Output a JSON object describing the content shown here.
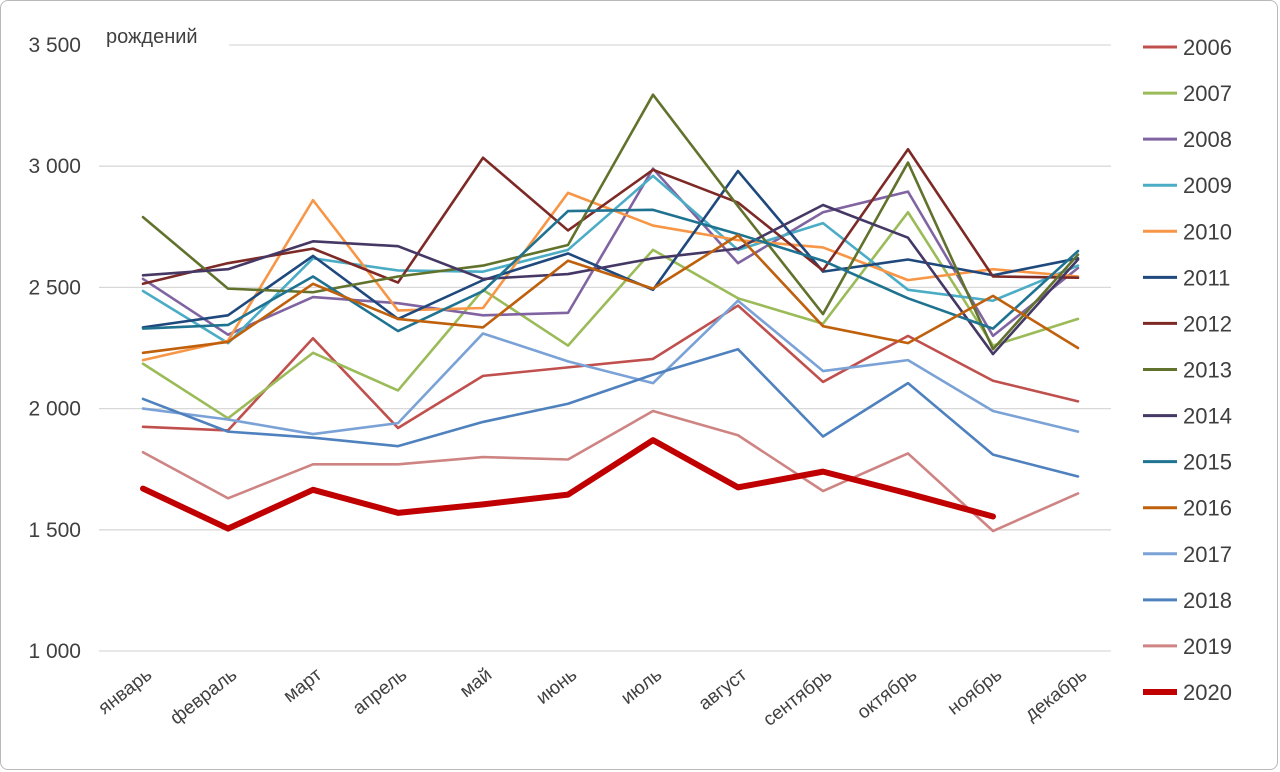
{
  "chart_data": {
    "type": "line",
    "title": "рождений",
    "x_categories": [
      "январь",
      "февраль",
      "март",
      "апрель",
      "май",
      "июнь",
      "июль",
      "август",
      "сентябрь",
      "октябрь",
      "ноябрь",
      "декабрь"
    ],
    "y_ticks": [
      {
        "label": "3 500",
        "value": 3500
      },
      {
        "label": "3 000",
        "value": 3000
      },
      {
        "label": "2 500",
        "value": 2500
      },
      {
        "label": "2 000",
        "value": 2000
      },
      {
        "label": "1 500",
        "value": 1500
      },
      {
        "label": "1 000",
        "value": 1000
      }
    ],
    "ylim": [
      1000,
      3500
    ],
    "grid": true,
    "grid_color": "#d9d9d9",
    "text_color": "#404040",
    "legend_position": "right",
    "series": [
      {
        "name": "2006",
        "color": "#C0504D",
        "width": 2.6,
        "values": [
          1925,
          1910,
          2290,
          1920,
          2135,
          2170,
          2205,
          2425,
          2110,
          2300,
          2115,
          2030
        ]
      },
      {
        "name": "2007",
        "color": "#9BBB59",
        "width": 2.6,
        "values": [
          2185,
          1960,
          2230,
          2075,
          2490,
          2260,
          2655,
          2455,
          2350,
          2810,
          2260,
          2370
        ]
      },
      {
        "name": "2008",
        "color": "#8064A2",
        "width": 2.6,
        "values": [
          2535,
          2305,
          2460,
          2435,
          2385,
          2395,
          2990,
          2600,
          2810,
          2895,
          2300,
          2580
        ]
      },
      {
        "name": "2009",
        "color": "#4BACC6",
        "width": 2.6,
        "values": [
          2485,
          2270,
          2620,
          2570,
          2565,
          2655,
          2960,
          2655,
          2765,
          2490,
          2445,
          2590
        ]
      },
      {
        "name": "2010",
        "color": "#F79646",
        "width": 2.6,
        "values": [
          2200,
          2280,
          2860,
          2405,
          2415,
          2890,
          2755,
          2695,
          2665,
          2530,
          2575,
          2545
        ]
      },
      {
        "name": "2011",
        "color": "#1F497D",
        "width": 2.6,
        "values": [
          2335,
          2385,
          2630,
          2370,
          2530,
          2640,
          2490,
          2980,
          2565,
          2615,
          2550,
          2620
        ]
      },
      {
        "name": "2012",
        "color": "#7D2A26",
        "width": 2.6,
        "values": [
          2515,
          2600,
          2660,
          2520,
          3035,
          2735,
          2985,
          2850,
          2570,
          3070,
          2545,
          2540
        ]
      },
      {
        "name": "2013",
        "color": "#61722D",
        "width": 2.6,
        "values": [
          2790,
          2495,
          2480,
          2545,
          2590,
          2675,
          3295,
          2835,
          2390,
          3015,
          2245,
          2635
        ]
      },
      {
        "name": "2014",
        "color": "#453864",
        "width": 2.6,
        "values": [
          2550,
          2575,
          2690,
          2670,
          2535,
          2555,
          2620,
          2660,
          2840,
          2705,
          2225,
          2615
        ]
      },
      {
        "name": "2015",
        "color": "#1F7391",
        "width": 2.6,
        "values": [
          2330,
          2345,
          2545,
          2320,
          2485,
          2815,
          2820,
          2720,
          2610,
          2455,
          2330,
          2650
        ]
      },
      {
        "name": "2016",
        "color": "#BF600D",
        "width": 2.6,
        "values": [
          2230,
          2275,
          2515,
          2370,
          2335,
          2610,
          2495,
          2715,
          2340,
          2270,
          2465,
          2250
        ]
      },
      {
        "name": "2017",
        "color": "#7BA2D6",
        "width": 2.6,
        "values": [
          2000,
          1955,
          1895,
          1940,
          2310,
          2195,
          2105,
          2445,
          2155,
          2200,
          1990,
          1905
        ]
      },
      {
        "name": "2018",
        "color": "#4E81BD",
        "width": 2.6,
        "values": [
          2040,
          1905,
          1880,
          1845,
          1945,
          2020,
          2140,
          2245,
          1885,
          2105,
          1810,
          1720
        ]
      },
      {
        "name": "2019",
        "color": "#CE8483",
        "width": 2.6,
        "values": [
          1820,
          1630,
          1770,
          1770,
          1800,
          1790,
          1990,
          1890,
          1660,
          1815,
          1495,
          1650
        ]
      },
      {
        "name": "2020",
        "color": "#C00000",
        "width": 6.0,
        "values": [
          1670,
          1505,
          1665,
          1570,
          1605,
          1645,
          1870,
          1675,
          1740,
          1650,
          1555,
          null
        ]
      }
    ]
  }
}
